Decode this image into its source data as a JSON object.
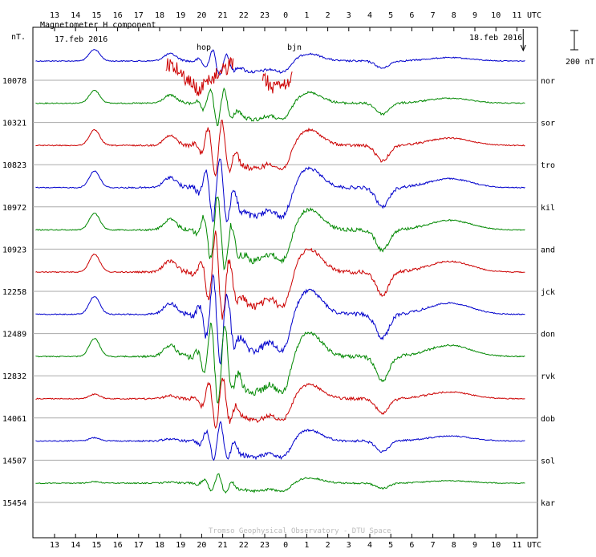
{
  "chart_data": {
    "type": "line",
    "title": "Magnetometer H component",
    "ylabel": "nT.",
    "xlabel": "UTC",
    "start_date": "17.feb 2016",
    "end_date": "18.feb 2016",
    "scale_label": "200 nT",
    "footer": "Tromso Geophysical Observatory - DTU Space",
    "x_ticks": [
      "13",
      "14",
      "15",
      "16",
      "17",
      "18",
      "19",
      "20",
      "21",
      "22",
      "23",
      "0",
      "1",
      "2",
      "3",
      "4",
      "5",
      "6",
      "7",
      "8",
      "9",
      "10",
      "11"
    ],
    "series": [
      {
        "name": "nor",
        "baseline": "10078",
        "color": "#0000cc",
        "amp": 0.3,
        "bay": 0.9
      },
      {
        "name": "sor",
        "baseline": "10321",
        "color": "#008800",
        "amp": 0.45,
        "bay": 1.0
      },
      {
        "name": "tro",
        "baseline": "10823",
        "color": "#cc0000",
        "amp": 0.65,
        "bay": 1.2
      },
      {
        "name": "kil",
        "baseline": "10972",
        "color": "#0000cc",
        "amp": 0.8,
        "bay": 1.3
      },
      {
        "name": "and",
        "baseline": "10923",
        "color": "#008800",
        "amp": 0.85,
        "bay": 1.3
      },
      {
        "name": "jck",
        "baseline": "12258",
        "color": "#cc0000",
        "amp": 0.95,
        "bay": 1.4
      },
      {
        "name": "don",
        "baseline": "12489",
        "color": "#0000cc",
        "amp": 1.0,
        "bay": 1.4
      },
      {
        "name": "rvk",
        "baseline": "12832",
        "color": "#008800",
        "amp": 1.0,
        "bay": 1.4
      },
      {
        "name": "dob",
        "baseline": "14061",
        "color": "#cc0000",
        "amp": 0.6,
        "bay": 0.35
      },
      {
        "name": "sol",
        "baseline": "14507",
        "color": "#0000cc",
        "amp": 0.45,
        "bay": 0.25
      },
      {
        "name": "kar",
        "baseline": "15454",
        "color": "#008800",
        "amp": 0.22,
        "bay": 0.12
      }
    ],
    "top_traces": [
      {
        "name": "hop",
        "color": "#cc0000"
      },
      {
        "name": "bjn",
        "color": "#cc0000"
      }
    ],
    "grid": true
  }
}
